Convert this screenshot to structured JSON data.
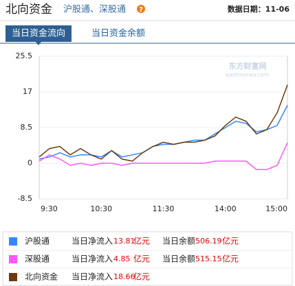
{
  "header": {
    "title": "北向资金",
    "subtitle": "沪股通、深股通",
    "help": "?",
    "date": "数据日期：11-06"
  },
  "tabs": [
    "当日资金流向",
    "当日资金余额"
  ],
  "chart_data": {
    "type": "line",
    "watermark": [
      "东方财富网",
      "eastmoney.com"
    ],
    "categories": [
      "9:30",
      null,
      null,
      null,
      null,
      null,
      "10:30",
      null,
      null,
      null,
      null,
      null,
      "11:30",
      null,
      null,
      null,
      null,
      null,
      "14:00",
      null,
      null,
      null,
      null,
      null,
      "15:00"
    ],
    "ylim": [
      -8.5,
      25.5
    ],
    "yticks": [
      25.5,
      17,
      8.5,
      0,
      -8.5
    ],
    "grid": true,
    "series": [
      {
        "name": "沪股通",
        "color": "#3388ff",
        "values": [
          1,
          1.5,
          2.5,
          1.5,
          2,
          2,
          1.5,
          3,
          1.5,
          2,
          2.5,
          4,
          4.5,
          4.5,
          5,
          5.5,
          5.5,
          7,
          8.5,
          10,
          9.5,
          7.5,
          8,
          9,
          13.81
        ]
      },
      {
        "name": "深股通",
        "color": "#ff55ff",
        "values": [
          0.5,
          2,
          1,
          -0.5,
          0,
          -0.5,
          0,
          0,
          -0.5,
          0,
          0,
          0,
          0,
          0,
          0,
          0,
          0,
          0.5,
          0.5,
          0.5,
          0.5,
          -1.5,
          -1.5,
          -0.5,
          4.85
        ]
      },
      {
        "name": "北向资金",
        "color": "#6b3a0e",
        "values": [
          1.5,
          3.5,
          4,
          2,
          3.5,
          2,
          1,
          3,
          1,
          0.5,
          2.5,
          4,
          5,
          4.5,
          5,
          5,
          5.5,
          6.5,
          9,
          11,
          10,
          7,
          8,
          12,
          18.66
        ]
      }
    ]
  },
  "summary": {
    "net_label": "当日净流入",
    "balance_label": "当日余额",
    "unit": "亿元",
    "rows": [
      {
        "net": 13.81,
        "balance": 506.19
      },
      {
        "net": 4.85,
        "balance": 515.15
      },
      {
        "net": 18.66
      }
    ]
  }
}
